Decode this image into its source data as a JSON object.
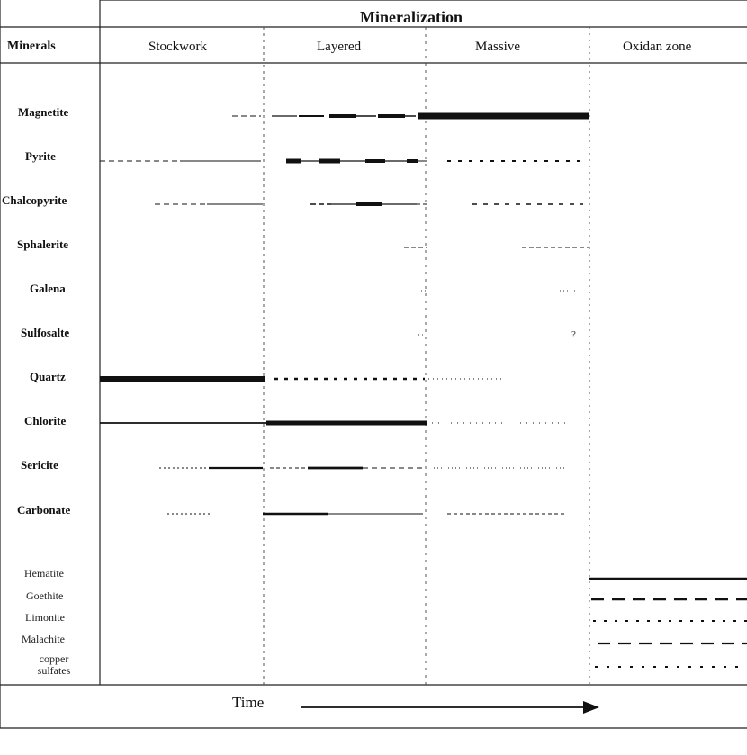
{
  "header": {
    "title": "Mineralization",
    "minerals_label": "Minerals",
    "columns": [
      "Stockwork",
      "Layered",
      "Massive",
      "Oxidan zone"
    ]
  },
  "minerals": [
    {
      "name": "Magnetite",
      "bold": true
    },
    {
      "name": "Pyrite",
      "bold": true
    },
    {
      "name": "Chalcopyrite",
      "bold": true
    },
    {
      "name": "Sphalerite",
      "bold": true
    },
    {
      "name": "Galena",
      "bold": true
    },
    {
      "name": "Sulfosalte",
      "bold": true
    },
    {
      "name": "Quartz",
      "bold": true
    },
    {
      "name": "Chlorite",
      "bold": true
    },
    {
      "name": "Sericite",
      "bold": true
    },
    {
      "name": "Carbonate",
      "bold": true
    },
    {
      "name": "Hematite",
      "bold": false
    },
    {
      "name": "Goethite",
      "bold": false
    },
    {
      "name": "Limonite",
      "bold": false
    },
    {
      "name": "Malachite",
      "bold": false
    },
    {
      "name": "copper sulfates",
      "bold": false
    }
  ],
  "annotations": {
    "sulfosalte_mark": "?"
  },
  "footer": {
    "time_label": "Time"
  }
}
